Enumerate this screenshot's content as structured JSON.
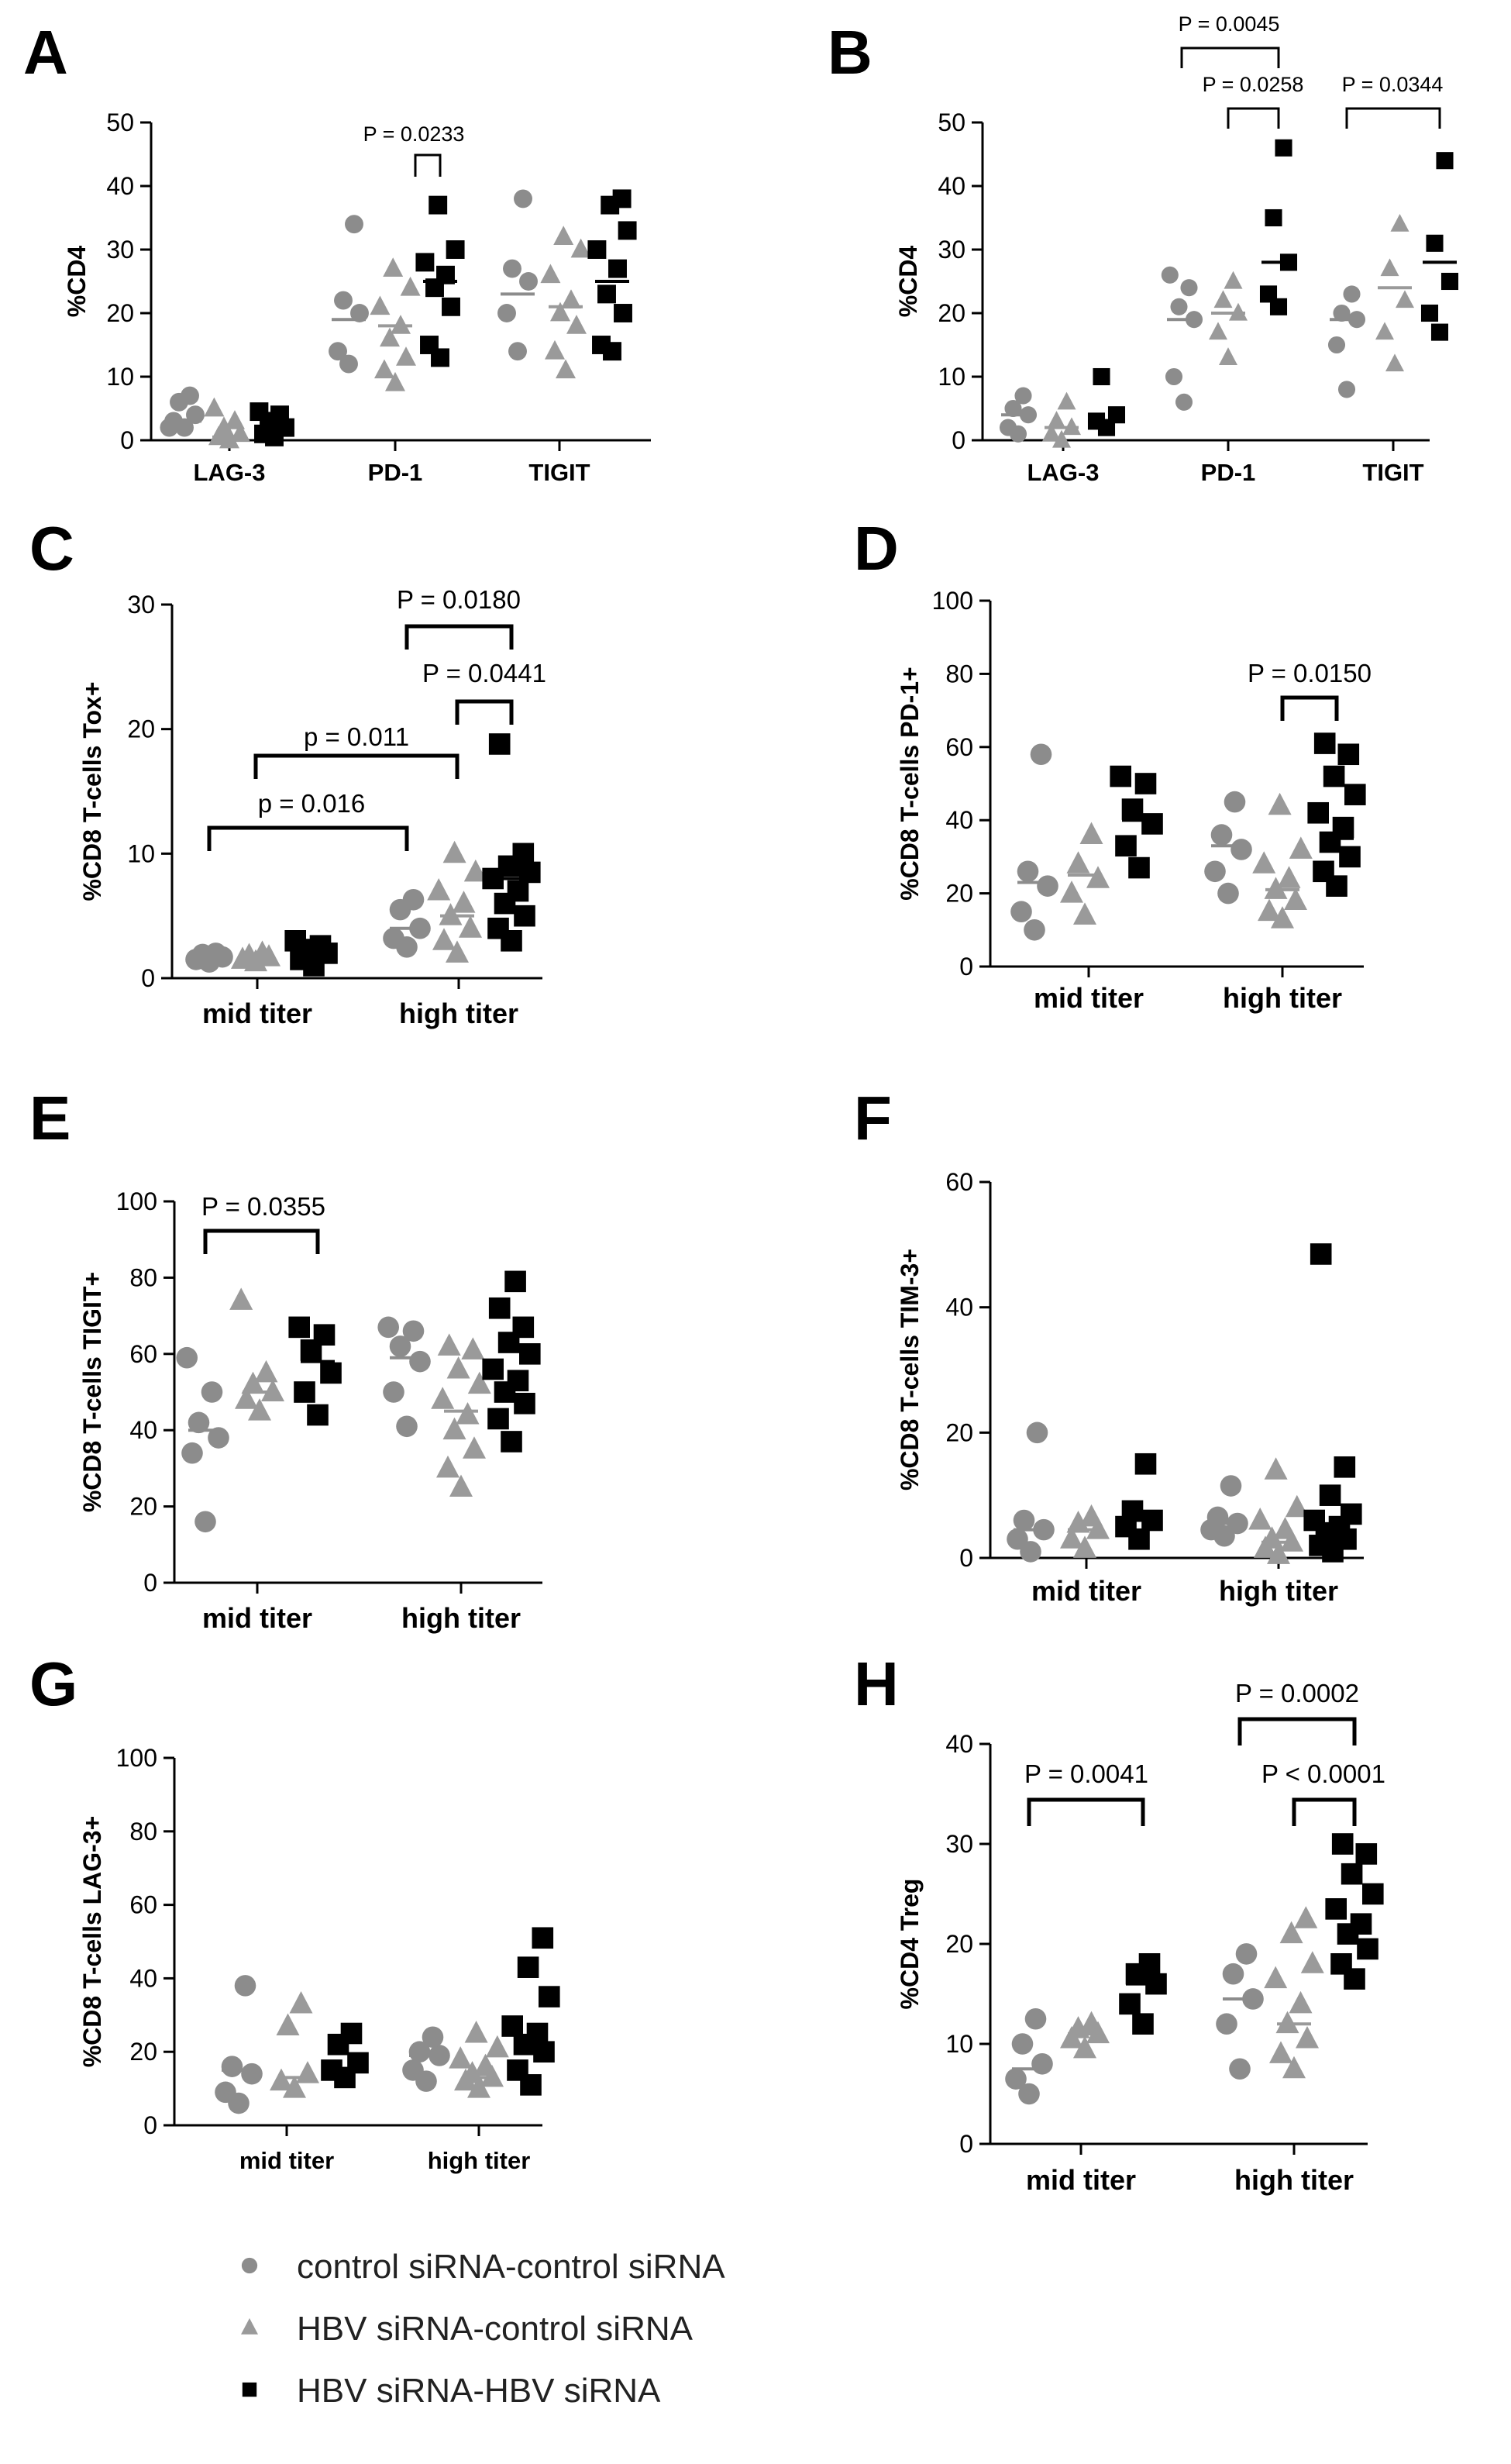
{
  "colors": {
    "control": "#8c8c8c",
    "hbv_control": "#9a9a9a",
    "hbv_hbv": "#000000"
  },
  "legend": [
    {
      "label": "control siRNA-control siRNA",
      "shape": "circle",
      "color": "#8c8c8c"
    },
    {
      "label": "HBV siRNA-control siRNA",
      "shape": "triangle",
      "color": "#9a9a9a"
    },
    {
      "label": "HBV siRNA-HBV siRNA",
      "shape": "square",
      "color": "#000000"
    }
  ],
  "chart_data": [
    {
      "panel": "A",
      "type": "scatter",
      "ylabel": "%CD4",
      "ylim": [
        0,
        50
      ],
      "yticks": [
        "0",
        "10",
        "20",
        "30",
        "40",
        "50"
      ],
      "categories": [
        "LAG-3",
        "PD-1",
        "TIGIT"
      ],
      "series": [
        {
          "name": "control siRNA-control siRNA",
          "shape": "circle",
          "median": [
            3,
            19,
            23
          ],
          "values": [
            [
              2,
              3,
              4,
              6,
              7,
              2
            ],
            [
              12,
              14,
              20,
              22,
              34
            ],
            [
              14,
              20,
              25,
              27,
              38
            ]
          ]
        },
        {
          "name": "HBV siRNA-control siRNA",
          "shape": "triangle",
          "median": [
            0.5,
            18,
            21
          ],
          "values": [
            [
              0,
              0.5,
              1,
              2,
              3,
              5
            ],
            [
              9,
              11,
              13,
              16,
              18,
              21,
              24,
              27
            ],
            [
              11,
              14,
              18,
              20,
              22,
              26,
              30,
              32
            ]
          ]
        },
        {
          "name": "HBV siRNA-HBV siRNA",
          "shape": "square",
          "median": [
            2,
            25,
            25
          ],
          "values": [
            [
              0.5,
              1,
              2,
              3,
              4,
              4.5
            ],
            [
              13,
              15,
              21,
              24,
              26,
              28,
              30,
              37
            ],
            [
              14,
              15,
              20,
              23,
              27,
              30,
              33,
              37,
              38
            ]
          ]
        }
      ],
      "comparisons": [
        {
          "text": "P = 0.0233",
          "between": [
            "PD-1/HBV siRNA-control siRNA",
            "PD-1/HBV siRNA-HBV siRNA"
          ]
        }
      ]
    },
    {
      "panel": "B",
      "type": "scatter",
      "ylabel": "%CD4",
      "ylim": [
        0,
        50
      ],
      "yticks": [
        "0",
        "10",
        "20",
        "30",
        "40",
        "50"
      ],
      "categories": [
        "LAG-3",
        "PD-1",
        "TIGIT"
      ],
      "series": [
        {
          "name": "control siRNA-control siRNA",
          "shape": "circle",
          "median": [
            4,
            19,
            19
          ],
          "values": [
            [
              1,
              2,
              4,
              5,
              7
            ],
            [
              6,
              10,
              19,
              21,
              24,
              26
            ],
            [
              8,
              15,
              19,
              20,
              23
            ]
          ]
        },
        {
          "name": "HBV siRNA-control siRNA",
          "shape": "triangle",
          "median": [
            2,
            20,
            24
          ],
          "values": [
            [
              0,
              1,
              2,
              3,
              6
            ],
            [
              13,
              17,
              20,
              22,
              25
            ],
            [
              12,
              17,
              22,
              27,
              34
            ]
          ]
        },
        {
          "name": "HBV siRNA-HBV siRNA",
          "shape": "square",
          "median": [
            3,
            28,
            28
          ],
          "values": [
            [
              2,
              3,
              4,
              10
            ],
            [
              21,
              23,
              28,
              35,
              46
            ],
            [
              17,
              20,
              25,
              31,
              44
            ]
          ]
        }
      ],
      "comparisons": [
        {
          "text": "P = 0.0045"
        },
        {
          "text": "P = 0.0258"
        },
        {
          "text": "P = 0.0344"
        }
      ]
    },
    {
      "panel": "C",
      "type": "scatter",
      "ylabel": "%CD8 T-cells Tox+",
      "ylim": [
        0,
        30
      ],
      "yticks": [
        "0",
        "10",
        "20",
        "30"
      ],
      "categories": [
        "mid titer",
        "high titer"
      ],
      "series": [
        {
          "name": "control siRNA-control siRNA",
          "shape": "circle",
          "median": [
            1.8,
            4
          ],
          "values": [
            [
              1.3,
              1.5,
              1.7,
              1.9,
              2.0
            ],
            [
              2.5,
              3.2,
              4.0,
              5.5,
              6.3
            ]
          ]
        },
        {
          "name": "HBV siRNA-control siRNA",
          "shape": "triangle",
          "median": [
            1.6,
            5
          ],
          "values": [
            [
              1.3,
              1.5,
              1.7,
              1.8,
              2.0
            ],
            [
              2,
              3,
              4,
              5,
              6,
              7,
              8.5,
              10
            ]
          ]
        },
        {
          "name": "HBV siRNA-HBV siRNA",
          "shape": "square",
          "median": [
            2,
            8
          ],
          "values": [
            [
              1,
              1.5,
              2,
              2.3,
              2.6,
              3
            ],
            [
              3,
              4,
              5,
              6,
              7,
              8,
              8.5,
              9,
              10,
              18.8
            ]
          ]
        }
      ],
      "comparisons": [
        {
          "text": "P = 0.0180"
        },
        {
          "text": "P = 0.0441"
        },
        {
          "text": "p = 0.011"
        },
        {
          "text": "p = 0.016"
        }
      ]
    },
    {
      "panel": "D",
      "type": "scatter",
      "ylabel": "%CD8 T-cells PD-1+",
      "ylim": [
        0,
        100
      ],
      "yticks": [
        "0",
        "20",
        "40",
        "60",
        "80",
        "100"
      ],
      "categories": [
        "mid titer",
        "high titer"
      ],
      "series": [
        {
          "name": "control siRNA-control siRNA",
          "shape": "circle",
          "median": [
            23,
            33
          ],
          "values": [
            [
              10,
              15,
              22,
              26,
              58
            ],
            [
              20,
              26,
              32,
              36,
              45
            ]
          ]
        },
        {
          "name": "HBV siRNA-control siRNA",
          "shape": "triangle",
          "median": [
            25,
            21
          ],
          "values": [
            [
              14,
              20,
              24,
              28,
              36
            ],
            [
              13,
              15,
              18,
              21,
              24,
              28,
              32,
              44
            ]
          ]
        },
        {
          "name": "HBV siRNA-HBV siRNA",
          "shape": "square",
          "median": [
            40,
            35
          ],
          "values": [
            [
              27,
              33,
              39,
              43,
              50,
              52
            ],
            [
              22,
              26,
              30,
              34,
              38,
              42,
              47,
              52,
              58,
              61
            ]
          ]
        }
      ],
      "comparisons": [
        {
          "text": "P = 0.0150"
        }
      ]
    },
    {
      "panel": "E",
      "type": "scatter",
      "ylabel": "%CD8 T-cells TIGIT+",
      "ylim": [
        0,
        100
      ],
      "yticks": [
        "0",
        "20",
        "40",
        "60",
        "80",
        "100"
      ],
      "categories": [
        "mid titer",
        "high titer"
      ],
      "series": [
        {
          "name": "control siRNA-control siRNA",
          "shape": "circle",
          "median": [
            40,
            59
          ],
          "values": [
            [
              16,
              34,
              38,
              42,
              50,
              59
            ],
            [
              41,
              50,
              58,
              62,
              66,
              67
            ]
          ]
        },
        {
          "name": "HBV siRNA-control siRNA",
          "shape": "triangle",
          "median": [
            50,
            45
          ],
          "values": [
            [
              45,
              48,
              50,
              52,
              55,
              74
            ],
            [
              25,
              30,
              35,
              40,
              44,
              48,
              52,
              56,
              61,
              62
            ]
          ]
        },
        {
          "name": "HBV siRNA-HBV siRNA",
          "shape": "square",
          "median": [
            58,
            52
          ],
          "values": [
            [
              44,
              50,
              55,
              61,
              65,
              67
            ],
            [
              37,
              43,
              47,
              50,
              53,
              56,
              60,
              63,
              67,
              72,
              79
            ]
          ]
        }
      ],
      "comparisons": [
        {
          "text": "P = 0.0355"
        }
      ]
    },
    {
      "panel": "F",
      "type": "scatter",
      "ylabel": "%CD8 T-cells TIM-3+",
      "ylim": [
        0,
        60
      ],
      "yticks": [
        "0",
        "20",
        "40",
        "60"
      ],
      "categories": [
        "mid titer",
        "high titer"
      ],
      "series": [
        {
          "name": "control siRNA-control siRNA",
          "shape": "circle",
          "median": [
            4.5,
            5.5
          ],
          "values": [
            [
              1,
              3,
              4.5,
              6,
              20
            ],
            [
              3.5,
              4.5,
              5.5,
              6.5,
              11.5
            ]
          ]
        },
        {
          "name": "HBV siRNA-control siRNA",
          "shape": "triangle",
          "median": [
            4.5,
            2.5
          ],
          "values": [
            [
              1.5,
              3,
              4.5,
              5.5,
              6.5
            ],
            [
              0.5,
              1.5,
              2.5,
              3,
              4.5,
              6,
              8,
              14
            ]
          ]
        },
        {
          "name": "HBV siRNA-HBV siRNA",
          "shape": "square",
          "median": [
            6,
            4.5
          ],
          "values": [
            [
              3,
              5,
              6,
              7.5,
              15
            ],
            [
              1,
              2,
              3,
              4,
              5,
              6,
              7,
              10,
              14.5,
              48.5
            ]
          ]
        }
      ],
      "comparisons": []
    },
    {
      "panel": "G",
      "type": "scatter",
      "ylabel": "%CD8 T-cells LAG-3+",
      "ylim": [
        0,
        100
      ],
      "yticks": [
        "0",
        "20",
        "40",
        "60",
        "80",
        "100"
      ],
      "categories": [
        "mid titer",
        "high titer"
      ],
      "series": [
        {
          "name": "control siRNA-control siRNA",
          "shape": "circle",
          "median": [
            15,
            19
          ],
          "values": [
            [
              6,
              9,
              14,
              16,
              38
            ],
            [
              12,
              15,
              19,
              20,
              24
            ]
          ]
        },
        {
          "name": "HBV siRNA-control siRNA",
          "shape": "triangle",
          "median": [
            13,
            13
          ],
          "values": [
            [
              10,
              12,
              14,
              27,
              33
            ],
            [
              10,
              12,
              13,
              14,
              16,
              18,
              21,
              25
            ]
          ]
        },
        {
          "name": "HBV siRNA-HBV siRNA",
          "shape": "square",
          "median": [
            15,
            21
          ],
          "values": [
            [
              13,
              15,
              17,
              22,
              25
            ],
            [
              11,
              15,
              20,
              22,
              25,
              27,
              35,
              43,
              51
            ]
          ]
        }
      ],
      "comparisons": []
    },
    {
      "panel": "H",
      "type": "scatter",
      "ylabel": "%CD4 Treg",
      "ylim": [
        0,
        40
      ],
      "yticks": [
        "0",
        "10",
        "20",
        "30",
        "40"
      ],
      "categories": [
        "mid titer",
        "high titer"
      ],
      "series": [
        {
          "name": "control siRNA-control siRNA",
          "shape": "circle",
          "median": [
            7.5,
            14.5
          ],
          "values": [
            [
              5,
              6.5,
              8,
              10,
              12.5
            ],
            [
              7.5,
              12,
              14.5,
              17,
              19
            ]
          ]
        },
        {
          "name": "HBV siRNA-control siRNA",
          "shape": "triangle",
          "median": [
            11,
            12
          ],
          "values": [
            [
              9.5,
              10.5,
              11,
              11.5,
              12
            ],
            [
              7.5,
              9,
              10.5,
              12,
              14,
              16.5,
              18,
              21,
              22.5
            ]
          ]
        },
        {
          "name": "HBV siRNA-HBV siRNA",
          "shape": "square",
          "median": [
            16,
            21.5
          ],
          "values": [
            [
              12,
              14,
              16,
              17,
              18
            ],
            [
              16.5,
              18,
              19.5,
              21,
              22,
              23.5,
              25,
              27,
              29,
              30
            ]
          ]
        }
      ],
      "comparisons": [
        {
          "text": "P = 0.0041"
        },
        {
          "text": "P = 0.0002"
        },
        {
          "text": "P < 0.0001"
        }
      ]
    }
  ]
}
